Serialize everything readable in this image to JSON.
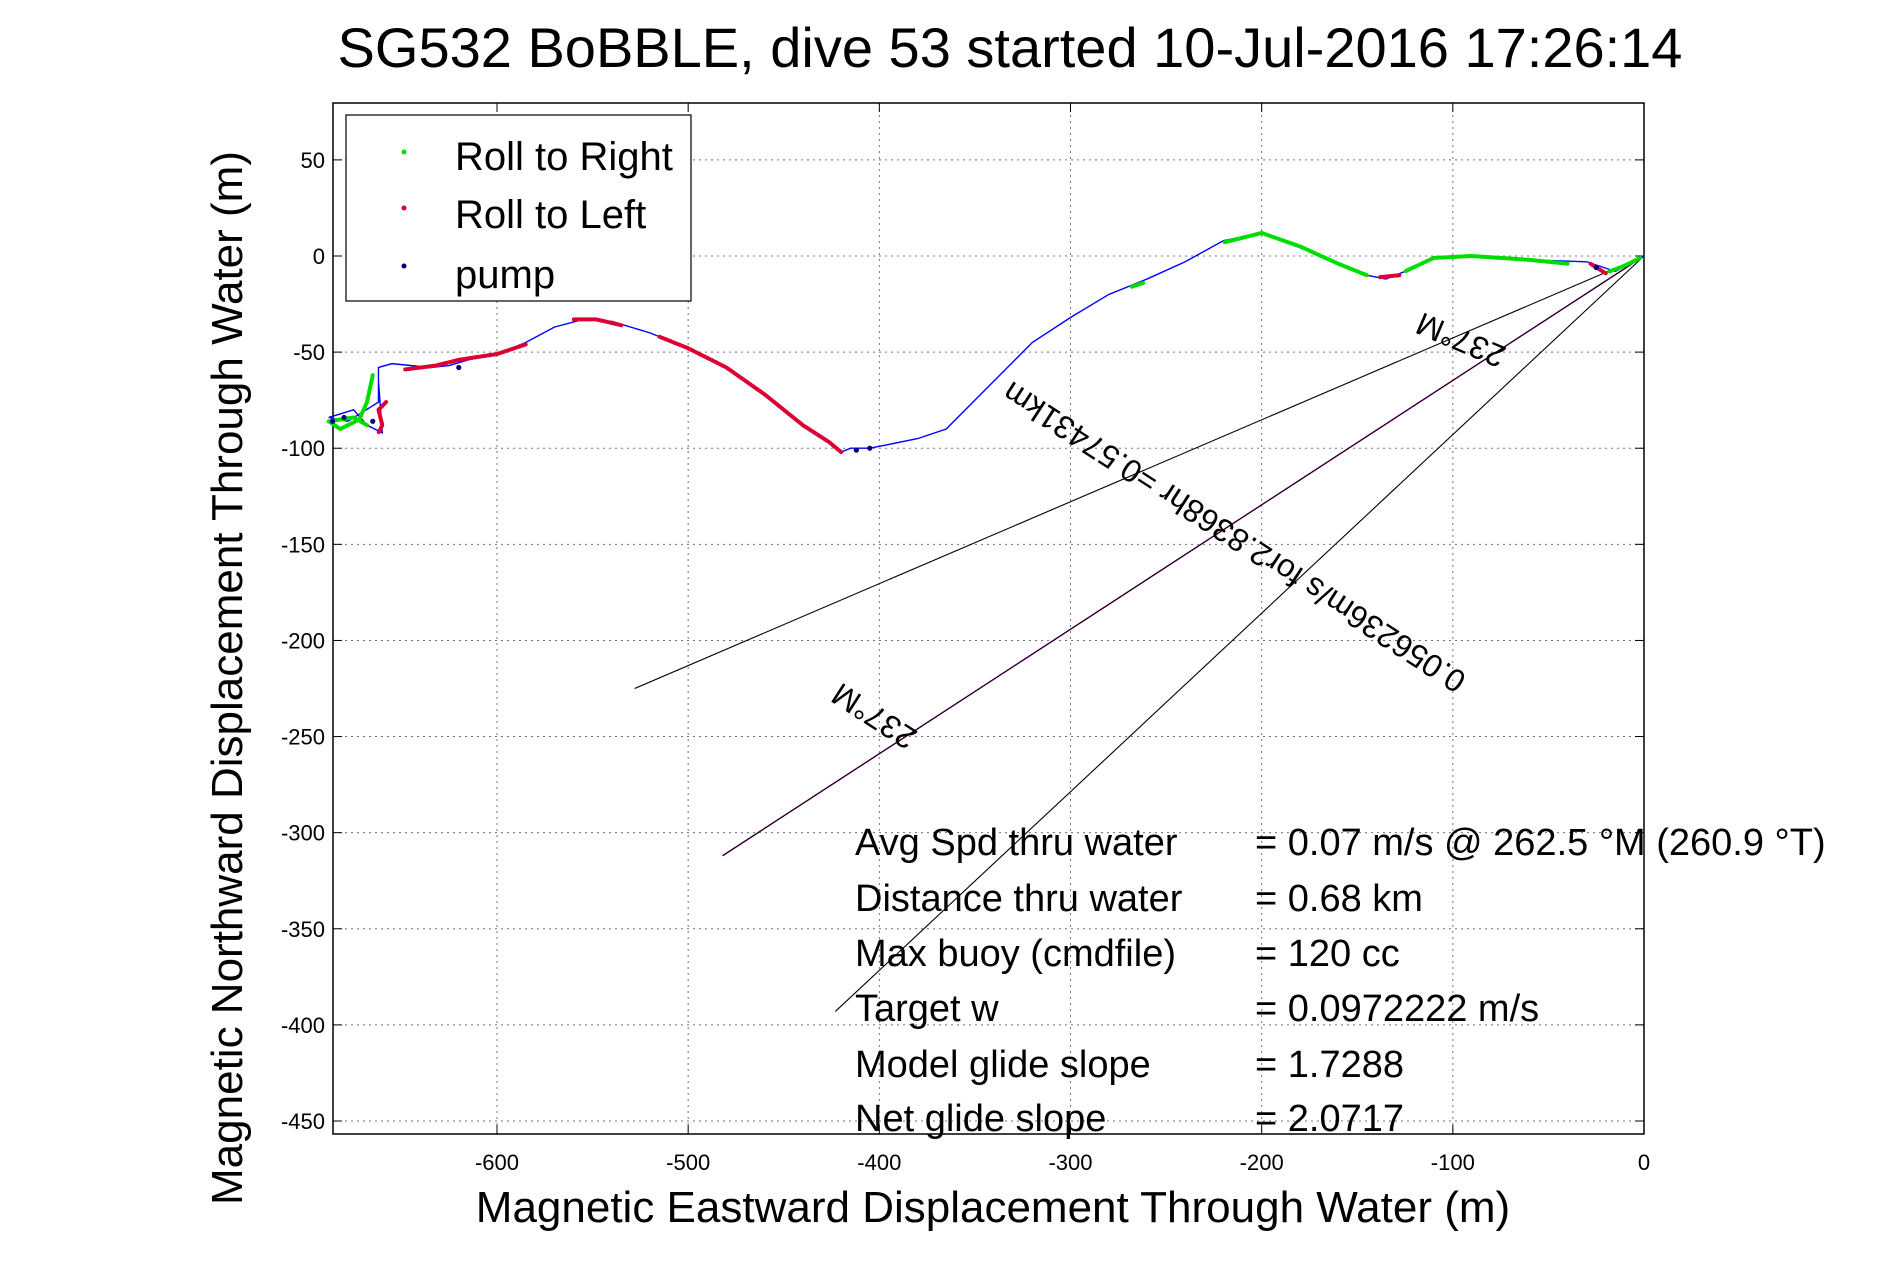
{
  "chart_data": {
    "type": "line",
    "title": "SG532 BoBBLE, dive 53 started 10-Jul-2016 17:26:14",
    "xlabel": "Magnetic Eastward Displacement Through Water (m)",
    "ylabel": "Magnetic Northward Displacement Through Water (m)",
    "xlim": [
      -690,
      0
    ],
    "ylim": [
      -460,
      80
    ],
    "xticks": [
      -600,
      -500,
      -400,
      -300,
      -200,
      -100,
      0
    ],
    "yticks": [
      50,
      0,
      -50,
      -100,
      -150,
      -200,
      -250,
      -300,
      -350,
      -400,
      -450
    ],
    "grid": true,
    "legend_position": "top-left",
    "legend": [
      {
        "name": "Roll to Right",
        "color": "#00dd00"
      },
      {
        "name": "Roll to Left",
        "color": "#dd0033"
      },
      {
        "name": "pump",
        "color": "#000080"
      }
    ],
    "track": {
      "name": "track",
      "color": "#0000ff",
      "x": [
        0,
        -15,
        -30,
        -60,
        -90,
        -110,
        -125,
        -135,
        -145,
        -160,
        -180,
        -200,
        -220,
        -240,
        -260,
        -280,
        -300,
        -320,
        -335,
        -350,
        -365,
        -380,
        -395,
        -405,
        -415,
        -420,
        -425,
        -440,
        -460,
        -480,
        -500,
        -520,
        -540,
        -555,
        -570,
        -585,
        -600,
        -615,
        -625,
        -635,
        -655,
        -662,
        -662,
        -678,
        -688,
        -675,
        -668,
        -660,
        -662
      ],
      "y": [
        0,
        -8,
        -3,
        -2,
        0,
        -1,
        -8,
        -12,
        -10,
        -4,
        5,
        12,
        8,
        -3,
        -12,
        -20,
        -32,
        -45,
        -60,
        -75,
        -90,
        -95,
        -98,
        -100,
        -100,
        -102,
        -98,
        -88,
        -72,
        -58,
        -48,
        -40,
        -34,
        -33,
        -37,
        -45,
        -51,
        -54,
        -57,
        -58,
        -56,
        -58,
        -76,
        -86,
        -84,
        -80,
        -88,
        -92,
        -65
      ]
    },
    "roll_right_segments": [
      [
        [
          -2,
          -1
        ],
        [
          -10,
          -5
        ],
        [
          -18,
          -8
        ]
      ],
      [
        [
          -40,
          -4
        ],
        [
          -60,
          -2
        ],
        [
          -90,
          0
        ],
        [
          -110,
          -1
        ],
        [
          -125,
          -8
        ]
      ],
      [
        [
          -145,
          -10
        ],
        [
          -160,
          -4
        ],
        [
          -180,
          5
        ],
        [
          -200,
          12
        ],
        [
          -220,
          7
        ]
      ],
      [
        [
          -262,
          -14
        ],
        [
          -268,
          -16
        ]
      ],
      [
        [
          -665,
          -62
        ],
        [
          -668,
          -76
        ],
        [
          -672,
          -85
        ],
        [
          -682,
          -90
        ],
        [
          -688,
          -86
        ],
        [
          -675,
          -84
        ],
        [
          -668,
          -88
        ]
      ]
    ],
    "roll_left_segments": [
      [
        [
          -20,
          -9
        ],
        [
          -28,
          -4
        ]
      ],
      [
        [
          -128,
          -10
        ],
        [
          -138,
          -11
        ]
      ],
      [
        [
          -420,
          -102
        ],
        [
          -426,
          -97
        ],
        [
          -440,
          -88
        ],
        [
          -460,
          -72
        ],
        [
          -480,
          -58
        ],
        [
          -500,
          -48
        ],
        [
          -515,
          -42
        ]
      ],
      [
        [
          -535,
          -36
        ],
        [
          -548,
          -33
        ],
        [
          -560,
          -33
        ]
      ],
      [
        [
          -585,
          -46
        ],
        [
          -600,
          -51
        ],
        [
          -620,
          -54
        ],
        [
          -632,
          -57
        ],
        [
          -648,
          -59
        ]
      ],
      [
        [
          -658,
          -76
        ],
        [
          -662,
          -80
        ],
        [
          -660,
          -88
        ],
        [
          -662,
          -92
        ]
      ]
    ],
    "pump_points": [
      [
        -25,
        -6
      ],
      [
        -405,
        -100
      ],
      [
        -412,
        -101
      ],
      [
        -620,
        -58
      ],
      [
        -665,
        -86
      ],
      [
        -680,
        -84
      ],
      [
        -686,
        -86
      ]
    ],
    "reference_lines": [
      {
        "x": [
          0,
          -528
        ],
        "y": [
          0,
          -225
        ],
        "color": "#000000"
      },
      {
        "x": [
          0,
          -482
        ],
        "y": [
          0,
          -312
        ],
        "color": "#ff00ff"
      },
      {
        "x": [
          0,
          -482
        ],
        "y": [
          0,
          -312
        ],
        "color": "#000000"
      },
      {
        "x": [
          0,
          -423
        ],
        "y": [
          0,
          -393
        ],
        "color": "#000000"
      }
    ],
    "rotated_labels": [
      "237°M",
      "0.056236m/s for2.8368hr =0.57431km",
      "237°M"
    ],
    "info_table": [
      {
        "label": "Avg Spd thru water",
        "value": "=  0.07 m/s @ 262.5 °M (260.9 °T)"
      },
      {
        "label": "Distance thru water",
        "value": "=  0.68 km"
      },
      {
        "label": "Max buoy (cmdfile)",
        "value": "= 120 cc"
      },
      {
        "label": "Target w",
        "value": "= 0.0972222 m/s"
      },
      {
        "label": "Model glide slope",
        "value": "= 1.7288"
      },
      {
        "label": "Net glide slope",
        "value": "= 2.0717"
      }
    ]
  }
}
